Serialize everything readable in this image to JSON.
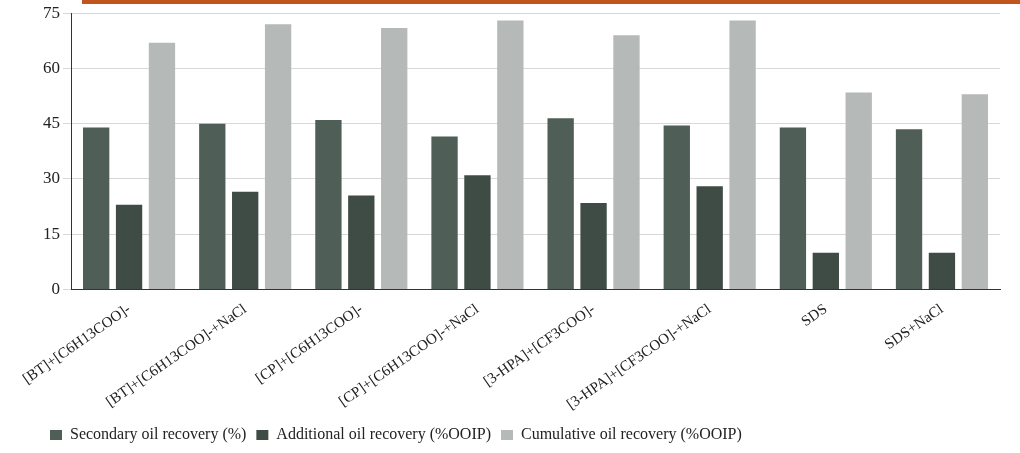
{
  "chart_data": {
    "type": "bar",
    "categories": [
      "[BT]+[C6H13COO]-",
      "[BT]+[C6H13COO]-+NaCl",
      "[CP]+[C6H13COO]-",
      "[CP]+[C6H13COO]-+NaCl",
      "[3-HPA]+[CF3COO]-",
      "[3-HPA]+[CF3COO]-+NaCl",
      "SDS",
      "SDS+NaCl"
    ],
    "series": [
      {
        "name": "Secondary oil recovery (%)",
        "color": "#4f5e57",
        "values": [
          44,
          45,
          46,
          41.5,
          46.5,
          44.5,
          44,
          43.5
        ]
      },
      {
        "name": "Additional oil recovery (%OOIP)",
        "color": "#3f4b45",
        "values": [
          23,
          26.5,
          25.5,
          31,
          23.5,
          28,
          10,
          10
        ]
      },
      {
        "name": "Cumulative oil recovery (%OOIP)",
        "color": "#b5b9b8",
        "values": [
          67,
          72,
          71,
          73,
          69,
          73,
          53.5,
          53
        ]
      }
    ],
    "ylim": [
      0,
      75
    ],
    "yticks": [
      0,
      15,
      30,
      45,
      60,
      75
    ],
    "grid": "y",
    "legend": "bottom left"
  }
}
